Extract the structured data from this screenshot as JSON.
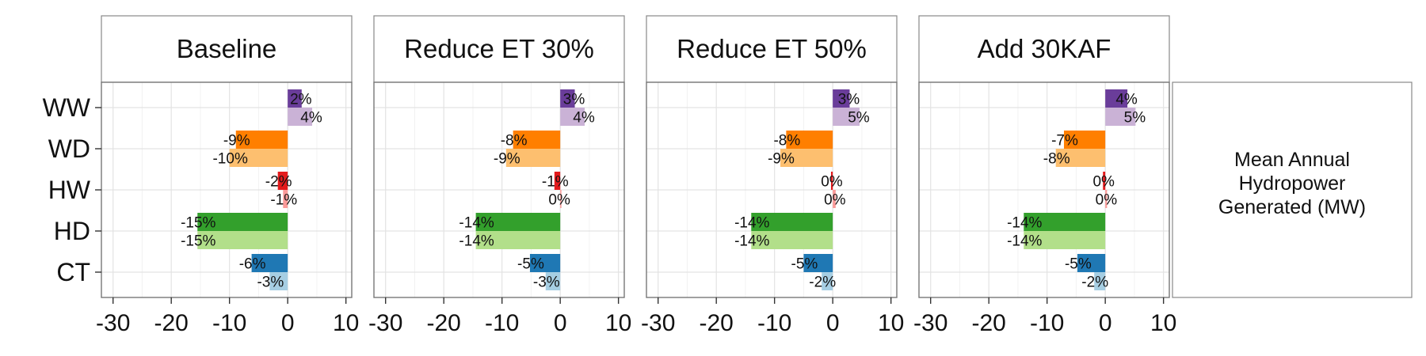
{
  "chart_data": {
    "type": "bar",
    "orientation": "horizontal",
    "grouped": true,
    "side_label": "Mean Annual Hydropower Generated (MW)",
    "xlim": [
      -32,
      11
    ],
    "x_ticks": [
      -30,
      -20,
      -10,
      0,
      10
    ],
    "x_tick_labels": [
      "-30",
      "-20",
      "-10",
      "0",
      "10"
    ],
    "grid": true,
    "categories": [
      "WW",
      "WD",
      "HW",
      "HD",
      "CT"
    ],
    "colors": {
      "WW": [
        "#6a3d9a",
        "#cab2d6"
      ],
      "WD": [
        "#ff7f00",
        "#fdbf6f"
      ],
      "HW": [
        "#e31a1c",
        "#fb9a99"
      ],
      "HD": [
        "#33a02c",
        "#b2df8a"
      ],
      "CT": [
        "#1f78b4",
        "#a6cee3"
      ]
    },
    "panels": [
      {
        "title": "Baseline",
        "bars": {
          "WW": [
            {
              "value": 2.4,
              "label": "2%"
            },
            {
              "value": 4.2,
              "label": "4%"
            }
          ],
          "WD": [
            {
              "value": -8.9,
              "label": "-9%"
            },
            {
              "value": -10.0,
              "label": "-10%"
            }
          ],
          "HW": [
            {
              "value": -1.7,
              "label": "-2%"
            },
            {
              "value": -0.8,
              "label": "-1%"
            }
          ],
          "HD": [
            {
              "value": -15.5,
              "label": "-15%"
            },
            {
              "value": -15.5,
              "label": "-15%"
            }
          ],
          "CT": [
            {
              "value": -6.2,
              "label": "-6%"
            },
            {
              "value": -3.1,
              "label": "-3%"
            }
          ]
        }
      },
      {
        "title": "Reduce ET 30%",
        "bars": {
          "WW": [
            {
              "value": 2.5,
              "label": "3%"
            },
            {
              "value": 4.2,
              "label": "4%"
            }
          ],
          "WD": [
            {
              "value": -8.1,
              "label": "-8%"
            },
            {
              "value": -9.3,
              "label": "-9%"
            }
          ],
          "HW": [
            {
              "value": -1.0,
              "label": "-1%"
            },
            {
              "value": 0.0,
              "label": "0%"
            }
          ],
          "HD": [
            {
              "value": -14.5,
              "label": "-14%"
            },
            {
              "value": -14.5,
              "label": "-14%"
            }
          ],
          "CT": [
            {
              "value": -5.2,
              "label": "-5%"
            },
            {
              "value": -2.5,
              "label": "-3%"
            }
          ]
        }
      },
      {
        "title": "Reduce ET 50%",
        "bars": {
          "WW": [
            {
              "value": 2.9,
              "label": "3%"
            },
            {
              "value": 4.6,
              "label": "5%"
            }
          ],
          "WD": [
            {
              "value": -8.0,
              "label": "-8%"
            },
            {
              "value": -9.0,
              "label": "-9%"
            }
          ],
          "HW": [
            {
              "value": -0.3,
              "label": "0%"
            },
            {
              "value": 0.5,
              "label": "0%"
            }
          ],
          "HD": [
            {
              "value": -14.0,
              "label": "-14%"
            },
            {
              "value": -14.0,
              "label": "-14%"
            }
          ],
          "CT": [
            {
              "value": -5.0,
              "label": "-5%"
            },
            {
              "value": -1.9,
              "label": "-2%"
            }
          ]
        }
      },
      {
        "title": "Add 30KAF",
        "bars": {
          "WW": [
            {
              "value": 3.8,
              "label": "4%"
            },
            {
              "value": 5.2,
              "label": "5%"
            }
          ],
          "WD": [
            {
              "value": -7.1,
              "label": "-7%"
            },
            {
              "value": -8.5,
              "label": "-8%"
            }
          ],
          "HW": [
            {
              "value": -0.4,
              "label": "0%"
            },
            {
              "value": 0.3,
              "label": "0%"
            }
          ],
          "HD": [
            {
              "value": -14.0,
              "label": "-14%"
            },
            {
              "value": -14.0,
              "label": "-14%"
            }
          ],
          "CT": [
            {
              "value": -4.8,
              "label": "-5%"
            },
            {
              "value": -1.9,
              "label": "-2%"
            }
          ]
        }
      }
    ]
  }
}
